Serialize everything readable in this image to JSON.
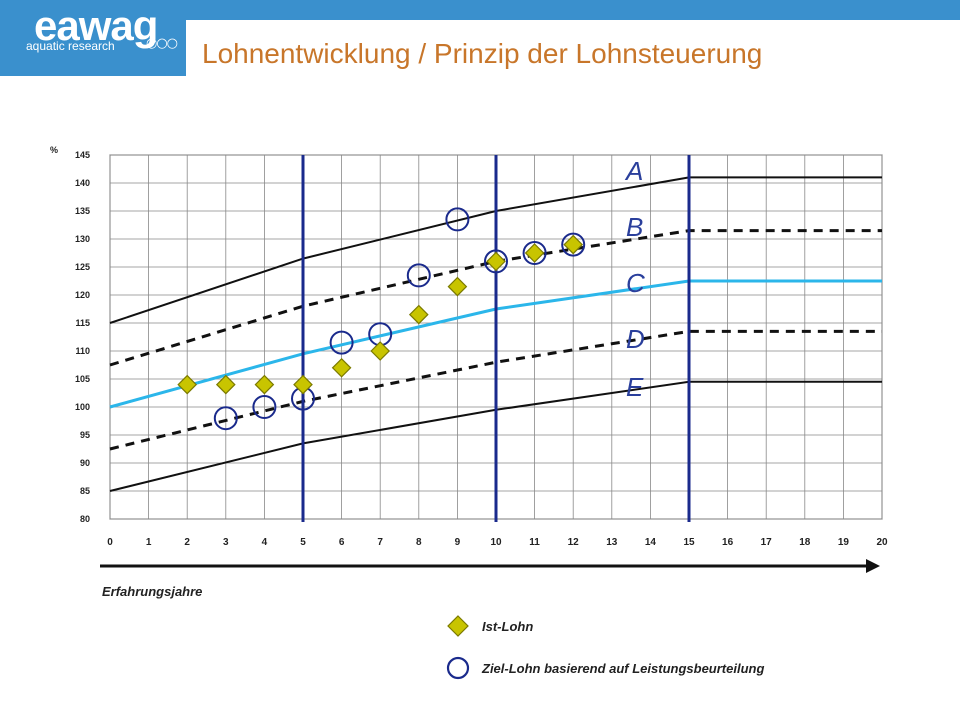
{
  "header": {
    "logo_word": "eawag",
    "logo_sub": "aquatic research",
    "logo_dots": "○○○",
    "title": "Lohnentwicklung / Prinzip der Lohnsteuerung"
  },
  "colors": {
    "brand_blue": "#3a90cd",
    "title_orange": "#c8762a",
    "curve_black": "#111111",
    "median_cyan": "#2bb6ea",
    "vline_navy": "#1a2a8c",
    "diamond_fill": "#c8c400",
    "circle_stroke": "#1a2a8c"
  },
  "chart_data": {
    "type": "scatter",
    "title": "",
    "xlabel": "Erfahrungsjahre",
    "ylabel": "%",
    "xlim": [
      0,
      20
    ],
    "ylim": [
      80,
      145
    ],
    "x_ticks": [
      "0",
      "1",
      "2",
      "3",
      "4",
      "5",
      "6",
      "7",
      "8",
      "9",
      "10",
      "11",
      "12",
      "13",
      "14",
      "15",
      "16",
      "17",
      "18",
      "19",
      "20"
    ],
    "y_ticks": [
      "80",
      "85",
      "90",
      "95",
      "100",
      "105",
      "110",
      "115",
      "120",
      "125",
      "130",
      "135",
      "140",
      "145"
    ],
    "grid": true,
    "vertical_lines_x": [
      5,
      10,
      15
    ],
    "band_labels": [
      "A",
      "B",
      "C",
      "D",
      "E"
    ],
    "curves": [
      {
        "style": "solid",
        "color": "black",
        "x": [
          0,
          5,
          10,
          15,
          20
        ],
        "y": [
          115,
          126.5,
          135,
          141,
          141
        ]
      },
      {
        "style": "dashed",
        "color": "black",
        "x": [
          0,
          5,
          10,
          15,
          20
        ],
        "y": [
          107.5,
          118,
          126,
          131.5,
          131.5
        ]
      },
      {
        "style": "solid",
        "color": "cyan",
        "x": [
          0,
          5,
          10,
          15,
          20
        ],
        "y": [
          100,
          109.5,
          117.5,
          122.5,
          122.5
        ]
      },
      {
        "style": "dashed",
        "color": "black",
        "x": [
          0,
          5,
          10,
          15,
          20
        ],
        "y": [
          92.5,
          101,
          108,
          113.5,
          113.5
        ]
      },
      {
        "style": "solid",
        "color": "black",
        "x": [
          0,
          5,
          10,
          15,
          20
        ],
        "y": [
          85,
          93.5,
          99.5,
          104.5,
          104.5
        ]
      }
    ],
    "series": [
      {
        "name": "Ist-Lohn",
        "marker": "diamond",
        "points": [
          [
            2,
            104
          ],
          [
            3,
            104
          ],
          [
            4,
            104
          ],
          [
            5,
            104
          ],
          [
            6,
            107
          ],
          [
            7,
            110
          ],
          [
            8,
            116.5
          ],
          [
            9,
            121.5
          ],
          [
            10,
            126
          ],
          [
            11,
            127.5
          ],
          [
            12,
            129
          ]
        ]
      },
      {
        "name": "Ziel-Lohn basierend auf Leistungsbeurteilung",
        "marker": "circle",
        "points": [
          [
            3,
            98
          ],
          [
            4,
            100
          ],
          [
            5,
            101.5
          ],
          [
            6,
            111.5
          ],
          [
            7,
            113
          ],
          [
            8,
            123.5
          ],
          [
            9,
            133.5
          ],
          [
            10,
            126
          ],
          [
            11,
            127.5
          ],
          [
            12,
            129
          ]
        ]
      }
    ],
    "legend_position": "bottom-center"
  }
}
